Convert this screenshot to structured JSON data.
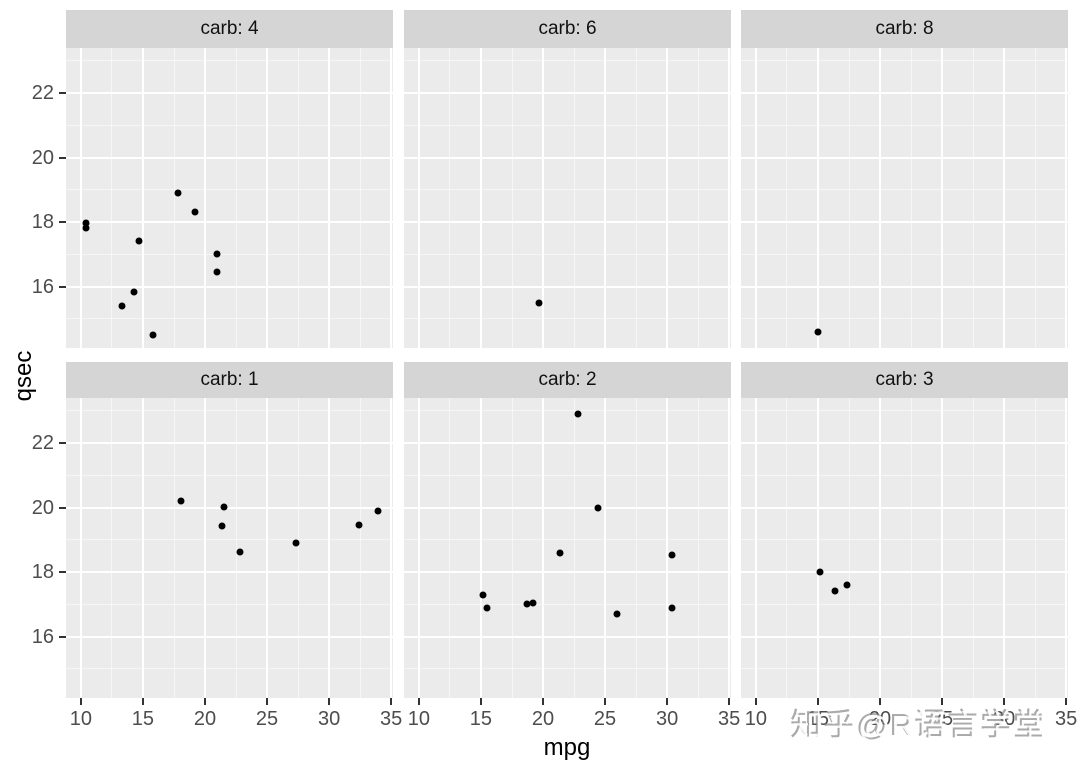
{
  "figure": {
    "watermark": "知乎@R语言学堂"
  },
  "colors": {
    "panel_bg": "#EBEBEB",
    "strip_bg": "#D5D5D5",
    "grid_major": "#FFFFFF",
    "grid_minor": "rgba(255,255,255,0.55)",
    "point": "#000000",
    "tick_label": "#4D4D4D",
    "axis_title": "#000000",
    "tick_mark": "#333333"
  },
  "chart_data": {
    "type": "scatter",
    "title": "",
    "xlabel": "mpg",
    "ylabel": "qsec",
    "facet_variable": "carb",
    "grid": true,
    "legend": "none",
    "x_ticks": [
      10,
      15,
      20,
      25,
      30,
      35
    ],
    "x_minor_ticks": [
      12.5,
      17.5,
      22.5,
      27.5,
      32.5
    ],
    "y_ticks": [
      16,
      18,
      20,
      22
    ],
    "y_minor_ticks": [
      15,
      17,
      19,
      21,
      23
    ],
    "xlim": [
      8.8,
      35.15
    ],
    "ylim": [
      14.09,
      23.4
    ],
    "facets": [
      {
        "label": "carb: 4",
        "row": 0,
        "col": 0,
        "points": [
          [
            21.0,
            16.46
          ],
          [
            21.0,
            17.02
          ],
          [
            19.2,
            18.3
          ],
          [
            17.8,
            18.9
          ],
          [
            10.4,
            17.98
          ],
          [
            10.4,
            17.82
          ],
          [
            14.7,
            17.42
          ],
          [
            13.3,
            15.41
          ],
          [
            15.8,
            14.5
          ],
          [
            14.3,
            15.84
          ]
        ]
      },
      {
        "label": "carb: 6",
        "row": 0,
        "col": 1,
        "points": [
          [
            19.7,
            15.5
          ]
        ]
      },
      {
        "label": "carb: 8",
        "row": 0,
        "col": 2,
        "points": [
          [
            15.0,
            14.6
          ]
        ]
      },
      {
        "label": "carb: 1",
        "row": 1,
        "col": 0,
        "points": [
          [
            22.8,
            18.61
          ],
          [
            21.4,
            19.44
          ],
          [
            18.1,
            20.22
          ],
          [
            32.4,
            19.47
          ],
          [
            33.9,
            19.9
          ],
          [
            21.5,
            20.01
          ],
          [
            27.3,
            18.9
          ]
        ]
      },
      {
        "label": "carb: 2",
        "row": 1,
        "col": 1,
        "points": [
          [
            18.7,
            17.02
          ],
          [
            24.4,
            20.0
          ],
          [
            22.8,
            22.9
          ],
          [
            30.4,
            18.52
          ],
          [
            15.5,
            16.87
          ],
          [
            15.2,
            17.3
          ],
          [
            19.2,
            17.05
          ],
          [
            26.0,
            16.7
          ],
          [
            30.4,
            16.9
          ],
          [
            21.4,
            18.6
          ]
        ]
      },
      {
        "label": "carb: 3",
        "row": 1,
        "col": 2,
        "points": [
          [
            16.4,
            17.4
          ],
          [
            17.3,
            17.6
          ],
          [
            15.2,
            18.0
          ]
        ]
      }
    ]
  }
}
